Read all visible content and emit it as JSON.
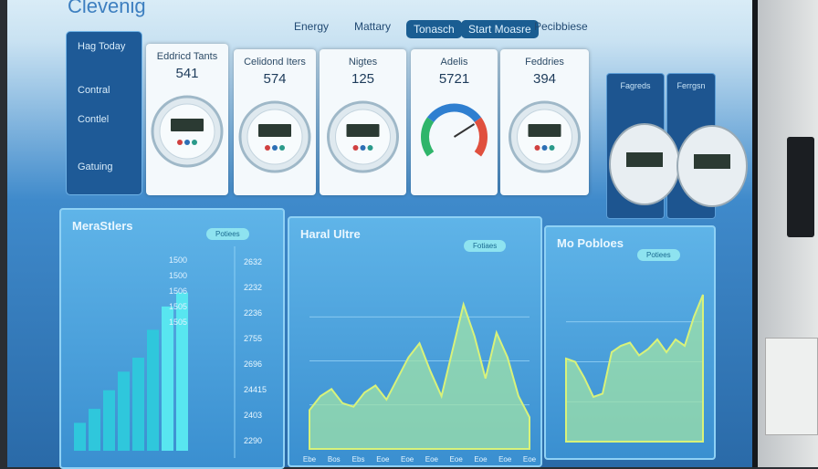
{
  "header": {
    "logo": "Clevenig",
    "nav": [
      "Energy",
      "Mattary",
      "Tonasch",
      "Start Moasre",
      "Pecibbiese"
    ]
  },
  "sidebar": [
    "Hag Today",
    "Contral",
    "Contlel",
    "Gatuing"
  ],
  "meters": [
    {
      "title": "Eddricd Tants",
      "value": 541
    },
    {
      "title": "Celidond Iters",
      "value": 574
    },
    {
      "title": "Nigtes",
      "value": 125
    },
    {
      "title": "Adelis",
      "value": 5721
    },
    {
      "title": "Feddries",
      "value": 394
    }
  ],
  "mini_cards": [
    "Fagreds",
    "Ferrgsn"
  ],
  "panels": [
    {
      "title": "MeraStlers",
      "button": "Potiees",
      "table_left": [
        "1500",
        "1500",
        "1506",
        "1505",
        "1505"
      ],
      "table_right": [
        "2632",
        "2232",
        "2236",
        "2755",
        "2696",
        "24415",
        "2403",
        "2290"
      ],
      "bars": [
        12,
        18,
        26,
        34,
        40,
        52,
        62,
        68
      ],
      "ylim": [
        0,
        80
      ]
    },
    {
      "title": "Haral Ultre",
      "button": "Fotiaes",
      "values": [
        22,
        30,
        34,
        26,
        24,
        32,
        36,
        28,
        40,
        52,
        60,
        44,
        30,
        56,
        82,
        64,
        40,
        66,
        52,
        30,
        18
      ],
      "ylim": [
        0,
        100
      ],
      "x_labels": [
        "Ebe",
        "Bos",
        "Ebs",
        "Eoe",
        "Eoe",
        "Eoe",
        "Eoe",
        "Eoe",
        "Eoe",
        "Eoe"
      ]
    },
    {
      "title": "Mo Pobloes",
      "button": "Potiees",
      "values": [
        52,
        50,
        40,
        28,
        30,
        56,
        60,
        62,
        54,
        58,
        64,
        56,
        64,
        60,
        78,
        92
      ],
      "ylim": [
        0,
        100
      ]
    }
  ]
}
